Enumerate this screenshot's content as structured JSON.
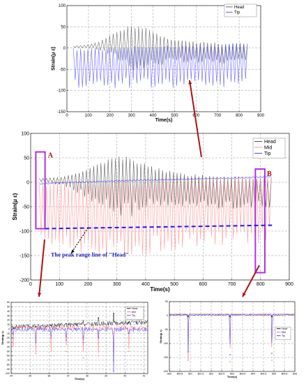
{
  "chart_data": [
    {
      "type": "line",
      "panel": "top",
      "xlabel": "Time(s)",
      "ylabel": "Strain(μ ε)",
      "xlim": [
        0,
        900
      ],
      "ylim": [
        -150,
        100
      ],
      "xticks": [
        0,
        100,
        200,
        300,
        400,
        500,
        600,
        700,
        800,
        900
      ],
      "yticks": [
        -150,
        -100,
        -50,
        0,
        50,
        100
      ],
      "grid": true,
      "legend_position": "top-right",
      "series": [
        {
          "name": "Head",
          "color": "#555555",
          "x": [
            30,
            100,
            150,
            200,
            250,
            300,
            330,
            360,
            400,
            450,
            500,
            550,
            600,
            650,
            700,
            750,
            800,
            840
          ],
          "y_max": [
            5,
            8,
            15,
            30,
            45,
            55,
            57,
            53,
            40,
            28,
            22,
            18,
            16,
            14,
            13,
            12,
            12,
            12
          ],
          "y_min": [
            0,
            0,
            -5,
            -20,
            -35,
            -50,
            -60,
            -55,
            -45,
            -40,
            -38,
            -38,
            -38,
            -38,
            -38,
            -38,
            -38,
            -38
          ]
        },
        {
          "name": "Tip",
          "color": "#4a4aff",
          "x": [
            30,
            100,
            200,
            300,
            400,
            500,
            600,
            700,
            800,
            840
          ],
          "y_max": [
            0,
            1,
            3,
            4,
            6,
            7,
            9,
            10,
            12,
            13
          ],
          "y_min": [
            -95,
            -95,
            -95,
            -95,
            -95,
            -95,
            -95,
            -95,
            -95,
            -95
          ]
        }
      ]
    },
    {
      "type": "line",
      "panel": "middle",
      "xlabel": "Time(s)",
      "ylabel": "Strain(μ ε)",
      "xlim": [
        0,
        900
      ],
      "ylim": [
        -200,
        100
      ],
      "xticks": [
        0,
        100,
        200,
        300,
        400,
        500,
        600,
        700,
        800,
        900
      ],
      "yticks": [
        -200,
        -150,
        -100,
        -50,
        0,
        50,
        100
      ],
      "grid": true,
      "legend_position": "top-right",
      "series": [
        {
          "name": "Head",
          "color": "#444444",
          "x": [
            30,
            100,
            150,
            200,
            250,
            300,
            330,
            360,
            400,
            450,
            500,
            550,
            600,
            650,
            700,
            750,
            800,
            840
          ],
          "y_max": [
            8,
            10,
            18,
            30,
            45,
            52,
            55,
            50,
            40,
            28,
            22,
            18,
            16,
            14,
            13,
            12,
            12,
            12
          ],
          "y_min": [
            0,
            -5,
            -20,
            -35,
            -55,
            -70,
            -75,
            -70,
            -60,
            -55,
            -55,
            -55,
            -55,
            -55,
            -55,
            -55,
            -55,
            -55
          ]
        },
        {
          "name": "Mid",
          "color": "#ff8888",
          "x": [
            30,
            100,
            200,
            300,
            400,
            500,
            600,
            700,
            800,
            840
          ],
          "y_max": [
            0,
            2,
            4,
            5,
            7,
            8,
            10,
            12,
            14,
            15
          ],
          "y_min": [
            -130,
            -140,
            -150,
            -160,
            -150,
            -140,
            -135,
            -130,
            -125,
            -120
          ]
        },
        {
          "name": "Tip",
          "color": "#3333ff",
          "x": [
            30,
            100,
            200,
            300,
            400,
            500,
            600,
            700,
            800,
            840
          ],
          "y_max": [
            -2,
            0,
            2,
            4,
            6,
            7,
            9,
            10,
            12,
            13
          ],
          "y_min": [
            -5,
            -3,
            -1,
            1,
            3,
            4,
            6,
            7,
            9,
            10
          ]
        }
      ],
      "annotations": [
        {
          "type": "box",
          "label": "A",
          "x_range": [
            18,
            50
          ],
          "y_range": [
            -95,
            62
          ]
        },
        {
          "type": "box",
          "label": "B",
          "x_range": [
            782,
            815
          ],
          "y_range": [
            -185,
            27
          ]
        },
        {
          "type": "hline",
          "label": "The peak range line of \"Head\"",
          "x_range": [
            50,
            840
          ],
          "y": [
            -95,
            -88
          ]
        }
      ]
    },
    {
      "type": "line",
      "panel": "bottom-left",
      "xlabel": "Time(s)",
      "ylabel": "Strain(μ ε)",
      "xlim": [
        34,
        41.2
      ],
      "ylim": [
        -100,
        60
      ],
      "xticks": [
        34,
        35,
        36,
        37,
        38,
        39,
        40,
        41
      ],
      "yticks": [
        -100,
        -90,
        -80,
        -70,
        -60,
        -50,
        -40,
        -30,
        -20,
        -10,
        0,
        10,
        20,
        30,
        40,
        50,
        60
      ],
      "grid": true,
      "legend_position": "top-right",
      "series": [
        {
          "name": "Head",
          "color": "#000000",
          "x": [
            34.1,
            35.3,
            36.1,
            36.9,
            37.8,
            38.6,
            39.4,
            40.2
          ],
          "y": [
            2,
            5,
            8,
            12,
            18,
            25,
            35,
            15
          ]
        },
        {
          "name": "Mid",
          "color": "#ff6666",
          "x": [
            34.1,
            35.3,
            36.1,
            36.9,
            37.8,
            38.6,
            39.4,
            40.2
          ],
          "y": [
            -60,
            -55,
            -60,
            -50,
            -65,
            -60,
            -70,
            -50
          ]
        },
        {
          "name": "Tip",
          "color": "#4444ff",
          "x": [
            34.1,
            35.3,
            36.1,
            36.9,
            37.8,
            38.6,
            39.4,
            40.2
          ],
          "y": [
            -20,
            -30,
            -20,
            -25,
            -30,
            -20,
            -95,
            -10
          ]
        }
      ]
    },
    {
      "type": "line",
      "panel": "bottom-right",
      "xlabel": "Time(s)",
      "ylabel": "Strain(μ ε)",
      "xlim": [
        800,
        806
      ],
      "ylim": [
        -200,
        50
      ],
      "xticks": [
        800,
        800.5,
        801,
        801.5,
        802,
        802.5,
        803,
        803.5,
        804,
        804.5,
        805,
        805.5,
        806
      ],
      "yticks": [
        -200,
        -150,
        -100,
        -50,
        0,
        50
      ],
      "grid": true,
      "legend_position": "right",
      "series": [
        {
          "name": "Head",
          "color": "#000000",
          "x": [
            800.9,
            802.9,
            804.9
          ],
          "y": [
            -4,
            -4,
            -4
          ]
        },
        {
          "name": "Mid",
          "color": "#ff6666",
          "x": [
            800.9,
            802.9,
            804.9
          ],
          "y": [
            -160,
            -165,
            -160
          ]
        },
        {
          "name": "Tip",
          "color": "#3333ff",
          "x": [
            800.9,
            802.9,
            804.9
          ],
          "y": [
            -130,
            -140,
            -135
          ]
        }
      ]
    }
  ],
  "annotations": {
    "box_a_label": "A",
    "box_b_label": "B",
    "peak_range_label": "The peak range line of \"Head\""
  }
}
